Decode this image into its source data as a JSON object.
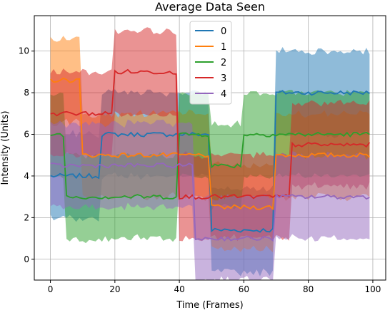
{
  "chart_data": {
    "type": "line",
    "title": "Average Data Seen",
    "xlabel": "Time (Frames)",
    "ylabel": "Intensity (Units)",
    "xlim": [
      -5,
      104
    ],
    "ylim": [
      -1,
      11.7
    ],
    "xticks": [
      0,
      20,
      40,
      60,
      80,
      100
    ],
    "yticks": [
      0,
      2,
      4,
      6,
      8,
      10
    ],
    "grid": true,
    "legend_position": "top-center",
    "band_half_width": 2,
    "series": [
      {
        "name": "0",
        "color": "#1f77b4",
        "segments": [
          {
            "x": [
              0,
              9
            ],
            "y": 4.0
          },
          {
            "x": [
              10,
              15
            ],
            "y": 4.0
          },
          {
            "x": [
              16,
              39
            ],
            "y": 6.0
          },
          {
            "x": [
              40,
              49
            ],
            "y": 6.0
          },
          {
            "x": [
              50,
              69
            ],
            "y": 1.4
          },
          {
            "x": [
              70,
              99
            ],
            "y": 8.0
          }
        ]
      },
      {
        "name": "1",
        "color": "#ff7f0e",
        "segments": [
          {
            "x": [
              0,
              9
            ],
            "y": 8.6
          },
          {
            "x": [
              10,
              39
            ],
            "y": 5.0
          },
          {
            "x": [
              40,
              49
            ],
            "y": 5.0
          },
          {
            "x": [
              50,
              69
            ],
            "y": 2.5
          },
          {
            "x": [
              70,
              99
            ],
            "y": 5.0
          }
        ]
      },
      {
        "name": "2",
        "color": "#2ca02c",
        "segments": [
          {
            "x": [
              0,
              4
            ],
            "y": 6.0
          },
          {
            "x": [
              5,
              39
            ],
            "y": 3.0
          },
          {
            "x": [
              40,
              49
            ],
            "y": 6.0
          },
          {
            "x": [
              50,
              59
            ],
            "y": 4.5
          },
          {
            "x": [
              60,
              99
            ],
            "y": 6.0
          }
        ]
      },
      {
        "name": "3",
        "color": "#d62728",
        "segments": [
          {
            "x": [
              0,
              19
            ],
            "y": 7.0
          },
          {
            "x": [
              20,
              39
            ],
            "y": 9.0
          },
          {
            "x": [
              40,
              49
            ],
            "y": 3.0
          },
          {
            "x": [
              50,
              69
            ],
            "y": 3.0
          },
          {
            "x": [
              70,
              74
            ],
            "y": 3.0
          },
          {
            "x": [
              75,
              99
            ],
            "y": 5.5
          }
        ]
      },
      {
        "name": "4",
        "color": "#9467bd",
        "segments": [
          {
            "x": [
              0,
              39
            ],
            "y": 4.5
          },
          {
            "x": [
              40,
              44
            ],
            "y": 4.5
          },
          {
            "x": [
              45,
              69
            ],
            "y": 1.0
          },
          {
            "x": [
              70,
              99
            ],
            "y": 3.0
          }
        ]
      }
    ]
  }
}
